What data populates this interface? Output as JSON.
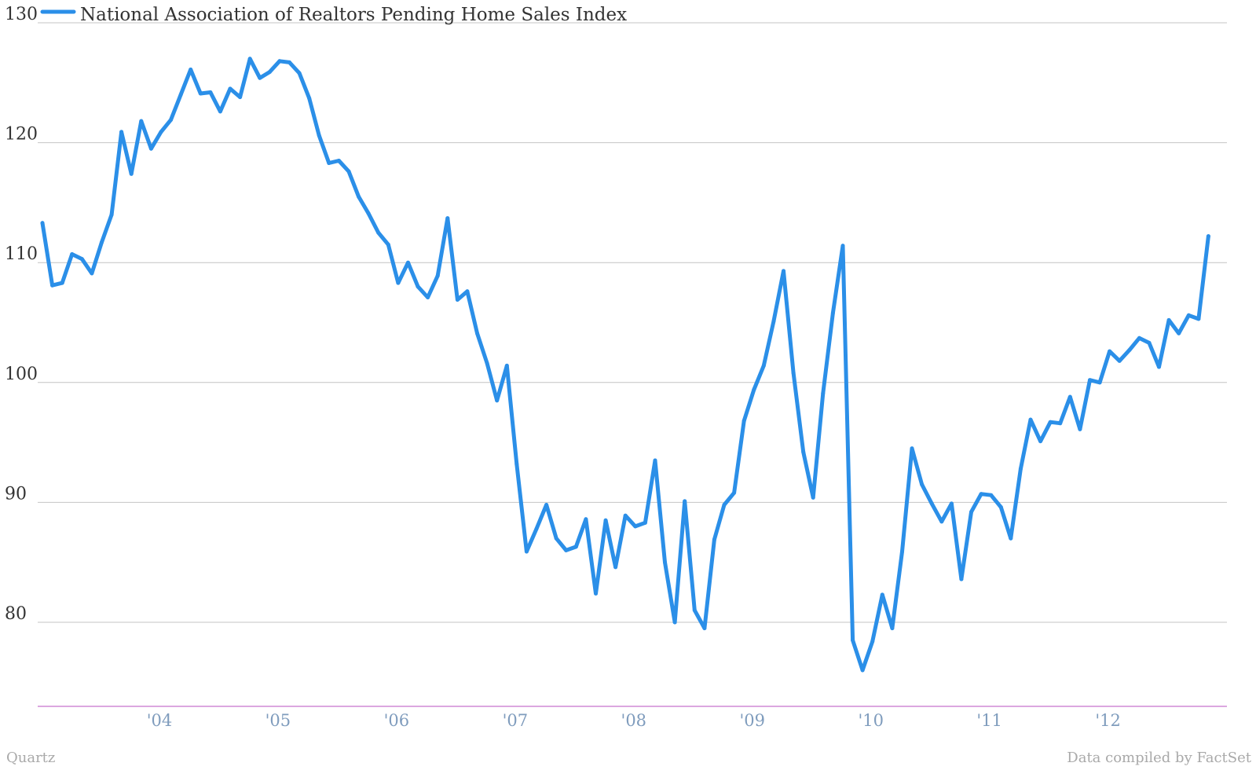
{
  "legend": {
    "label": "National Association of Realtors Pending Home Sales Index"
  },
  "footer": {
    "source_left": "Quartz",
    "source_right": "Data compiled by FactSet"
  },
  "colors": {
    "series": "#2b8fe8",
    "grid": "#c4c4c4",
    "baseline": "#d08ad6",
    "axis_text": "#333333",
    "x_tick_text": "#7f9cbd"
  },
  "chart_data": {
    "type": "line",
    "title": "",
    "xlabel": "",
    "ylabel": "",
    "x_ticks": [
      "'04",
      "'05",
      "'06",
      "'07",
      "'08",
      "'09",
      "'10",
      "'11",
      "'12"
    ],
    "y_ticks": [
      80,
      90,
      100,
      110,
      120,
      130
    ],
    "ylim": [
      73,
      130
    ],
    "xlim": [
      "2003-01",
      "2012-12"
    ],
    "grid": true,
    "legend_position": "top-left",
    "series": [
      {
        "name": "National Association of Realtors Pending Home Sales Index",
        "x_start": "2003-01",
        "frequency": "monthly",
        "values": [
          113.3,
          108.1,
          108.3,
          110.7,
          110.3,
          109.1,
          111.7,
          114.0,
          120.9,
          117.4,
          121.8,
          119.5,
          120.9,
          121.9,
          124.0,
          126.1,
          124.1,
          124.2,
          122.6,
          124.5,
          123.8,
          127.0,
          125.4,
          125.9,
          126.8,
          126.7,
          125.8,
          123.7,
          120.6,
          118.3,
          118.5,
          117.6,
          115.5,
          114.1,
          112.5,
          111.5,
          108.3,
          110.0,
          108.0,
          107.1,
          108.9,
          113.7,
          106.9,
          107.6,
          104.1,
          101.6,
          98.5,
          101.4,
          93.2,
          85.9,
          87.8,
          89.8,
          87.0,
          86.0,
          86.3,
          88.6,
          82.4,
          88.5,
          84.6,
          88.9,
          88.0,
          88.3,
          93.5,
          85.0,
          80.0,
          90.1,
          81.0,
          79.5,
          86.9,
          89.8,
          90.8,
          96.8,
          99.4,
          101.4,
          105.1,
          109.3,
          100.8,
          94.2,
          90.4,
          99.1,
          105.8,
          111.4,
          78.5,
          76.0,
          78.4,
          82.3,
          79.5,
          85.9,
          94.5,
          91.5,
          89.9,
          88.4,
          89.9,
          83.6,
          89.2,
          90.7,
          90.6,
          89.6,
          87.0,
          92.8,
          96.9,
          95.1,
          96.7,
          96.6,
          98.8,
          96.1,
          100.2,
          100.0,
          102.6,
          101.8,
          102.7,
          103.7,
          103.3,
          101.3,
          105.2,
          104.1,
          105.6,
          105.3,
          112.2
        ]
      }
    ]
  }
}
